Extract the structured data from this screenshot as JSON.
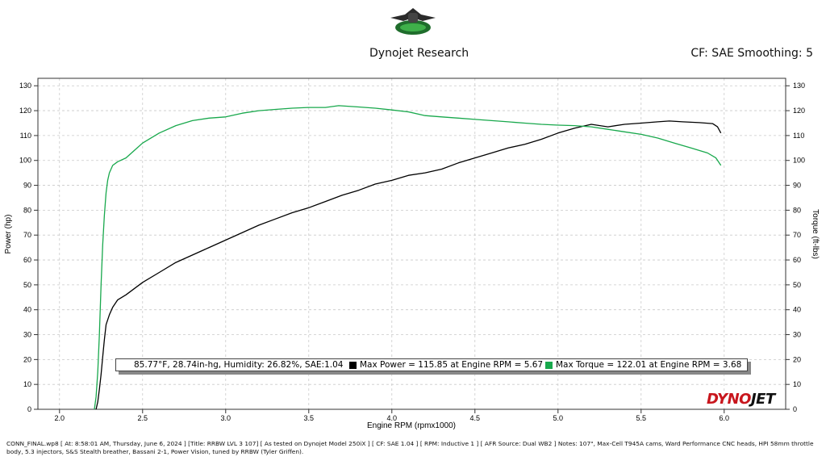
{
  "header": {
    "title": "Dynojet Research",
    "cf": "CF: SAE Smoothing: 5"
  },
  "legend": {
    "conditions": "85.77°F, 28.74in-hg, Humidity: 26.82%, SAE:1.04",
    "max_power": "Max Power = 115.85 at Engine RPM = 5.67",
    "max_torque": "Max Torque = 122.01 at Engine RPM = 3.68",
    "power_color": "#000000",
    "torque_color": "#18a84c"
  },
  "brand": {
    "part1": "DYNO",
    "part2": "JET"
  },
  "footer": {
    "text": "CONN_FINAL.wp8 [ At: 8:58:01 AM, Thursday, June 6, 2024 ] [Title: RRBW LVL 3 107] [ As tested on Dynojet Model 250iX ] [ CF: SAE 1.04 ] [ RPM: Inductive 1 ] [ AFR Source: Dual WB2 ] Notes: 107\", Max-Cell T945A cams, Ward Performance CNC heads, HPI 58mm throttle body, 5.3 injectors, S&S Stealth breather, Bassani 2-1, Power Vision, tuned by RRBW (Tyler Griffen)."
  },
  "chart_data": {
    "type": "line",
    "title": "Dynojet Research",
    "xlabel": "Engine RPM (rpmx1000)",
    "ylabel": "Power (hp)",
    "y2label": "Torque (ft-lbs)",
    "xlim": [
      1.87,
      6.37
    ],
    "ylim": [
      0,
      133
    ],
    "x_ticks": [
      "2.0",
      "2.5",
      "3.0",
      "3.5",
      "4.0",
      "4.5",
      "5.0",
      "5.5",
      "6.0"
    ],
    "y_ticks": [
      "0",
      "10",
      "20",
      "30",
      "40",
      "50",
      "60",
      "70",
      "80",
      "90",
      "100",
      "110",
      "120",
      "130"
    ],
    "grid": true,
    "series": [
      {
        "name": "Power",
        "axis": "left",
        "color": "#000000",
        "x": [
          2.22,
          2.23,
          2.24,
          2.25,
          2.26,
          2.27,
          2.28,
          2.3,
          2.32,
          2.35,
          2.4,
          2.5,
          2.6,
          2.7,
          2.8,
          2.9,
          3.0,
          3.1,
          3.2,
          3.3,
          3.4,
          3.5,
          3.6,
          3.7,
          3.8,
          3.9,
          4.0,
          4.1,
          4.2,
          4.3,
          4.4,
          4.5,
          4.6,
          4.7,
          4.8,
          4.9,
          5.0,
          5.1,
          5.2,
          5.3,
          5.4,
          5.5,
          5.6,
          5.67,
          5.75,
          5.85,
          5.93,
          5.96,
          5.98
        ],
        "values": [
          0,
          3,
          8,
          14,
          21,
          28,
          34,
          38,
          41,
          44,
          46,
          51,
          55,
          59,
          62,
          65,
          68,
          71,
          74,
          76.5,
          79,
          81,
          83.5,
          86,
          88,
          90.5,
          92,
          94,
          95,
          96.5,
          99,
          101,
          103,
          105,
          106.5,
          108.5,
          111,
          113,
          114.5,
          113.5,
          114.5,
          115,
          115.5,
          115.85,
          115.5,
          115.2,
          114.8,
          113.5,
          111
        ]
      },
      {
        "name": "Torque",
        "axis": "right",
        "color": "#18a84c",
        "x": [
          2.21,
          2.22,
          2.23,
          2.24,
          2.25,
          2.26,
          2.27,
          2.28,
          2.29,
          2.3,
          2.32,
          2.35,
          2.4,
          2.45,
          2.5,
          2.6,
          2.7,
          2.8,
          2.9,
          3.0,
          3.1,
          3.2,
          3.3,
          3.4,
          3.5,
          3.6,
          3.68,
          3.8,
          3.9,
          4.0,
          4.1,
          4.2,
          4.3,
          4.4,
          4.5,
          4.6,
          4.7,
          4.8,
          4.9,
          5.0,
          5.1,
          5.2,
          5.3,
          5.4,
          5.5,
          5.6,
          5.7,
          5.8,
          5.9,
          5.95,
          5.98
        ],
        "values": [
          0,
          5,
          15,
          30,
          50,
          66,
          78,
          87,
          92,
          95,
          98,
          99.5,
          101,
          104,
          107,
          111,
          114,
          116,
          117,
          117.5,
          119,
          120,
          120.5,
          121,
          121.3,
          121.3,
          122.01,
          121.5,
          121,
          120.3,
          119.5,
          118,
          117.5,
          117,
          116.5,
          116,
          115.5,
          115,
          114.5,
          114.2,
          114,
          113.5,
          112.5,
          111.5,
          110.5,
          109,
          107,
          105,
          103,
          101,
          98
        ]
      }
    ]
  }
}
